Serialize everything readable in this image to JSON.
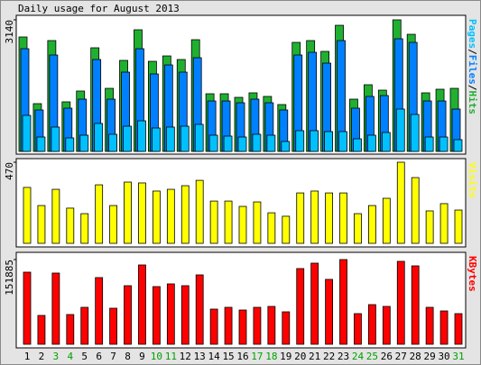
{
  "chart_data": [
    {
      "type": "grouped-bar",
      "title": "Daily usage for August 2013",
      "separator": "/",
      "ylim": [
        0,
        3140
      ],
      "yticks": [
        3140
      ],
      "series": [
        {
          "name": "Pages",
          "color": "#00c0ff",
          "values": [
            860,
            344,
            581,
            323,
            387,
            667,
            409,
            602,
            731,
            559,
            581,
            602,
            645,
            387,
            366,
            344,
            409,
            387,
            237,
            495,
            495,
            473,
            473,
            301,
            387,
            452,
            1011,
            882,
            344,
            344,
            280
          ]
        },
        {
          "name": "Files",
          "color": "#0080ff",
          "values": [
            2451,
            989,
            2301,
            1032,
            1247,
            2193,
            1247,
            1892,
            2451,
            1849,
            2064,
            1892,
            2236,
            1204,
            1204,
            1161,
            1247,
            1161,
            989,
            2301,
            2365,
            2107,
            2645,
            1032,
            1312,
            1333,
            2688,
            2602,
            1204,
            1204,
            1011
          ]
        },
        {
          "name": "Hits",
          "color": "#20b030",
          "values": [
            2731,
            1140,
            2645,
            1183,
            1441,
            2473,
            1505,
            2172,
            2903,
            2150,
            2279,
            2193,
            2666,
            1376,
            1376,
            1290,
            1398,
            1312,
            1118,
            2602,
            2645,
            2387,
            3010,
            1247,
            1591,
            1462,
            3140,
            2795,
            1398,
            1484,
            1505
          ]
        }
      ]
    },
    {
      "type": "bar",
      "ylim": [
        0,
        470
      ],
      "yticks": [
        470
      ],
      "series": [
        {
          "name": "Visits",
          "color": "#ffff00",
          "values": [
            324,
            219,
            313,
            204,
            172,
            339,
            219,
            355,
            350,
            303,
            313,
            334,
            365,
            245,
            245,
            214,
            240,
            177,
            157,
            292,
            303,
            292,
            292,
            172,
            219,
            261,
            470,
            381,
            188,
            230,
            193
          ]
        }
      ]
    },
    {
      "type": "bar",
      "ylim": [
        0,
        151885
      ],
      "yticks": [
        151885
      ],
      "categories": [
        "1",
        "2",
        "3",
        "4",
        "5",
        "6",
        "7",
        "8",
        "9",
        "10",
        "11",
        "12",
        "13",
        "14",
        "15",
        "16",
        "17",
        "18",
        "19",
        "20",
        "21",
        "22",
        "23",
        "24",
        "25",
        "26",
        "27",
        "28",
        "29",
        "30",
        "31"
      ],
      "category_colors": [
        "#000000",
        "#000000",
        "#00a000",
        "#00a000",
        "#000000",
        "#000000",
        "#000000",
        "#000000",
        "#000000",
        "#00a000",
        "#00a000",
        "#000000",
        "#000000",
        "#000000",
        "#000000",
        "#000000",
        "#00a000",
        "#00a000",
        "#000000",
        "#000000",
        "#000000",
        "#000000",
        "#000000",
        "#00a000",
        "#00a000",
        "#000000",
        "#000000",
        "#000000",
        "#000000",
        "#000000",
        "#00a000"
      ],
      "series": [
        {
          "name": "KBytes",
          "color": "#ff0000",
          "values": [
            129280,
            51712,
            127664,
            53328,
            66256,
            119584,
            64640,
            105040,
            142208,
            103424,
            108272,
            105040,
            124432,
            63024,
            66256,
            61408,
            66256,
            67872,
            58176,
            135744,
            145440,
            116352,
            151885,
            54944,
            71104,
            67872,
            148672,
            140592,
            66256,
            59792,
            54944
          ]
        }
      ]
    }
  ]
}
